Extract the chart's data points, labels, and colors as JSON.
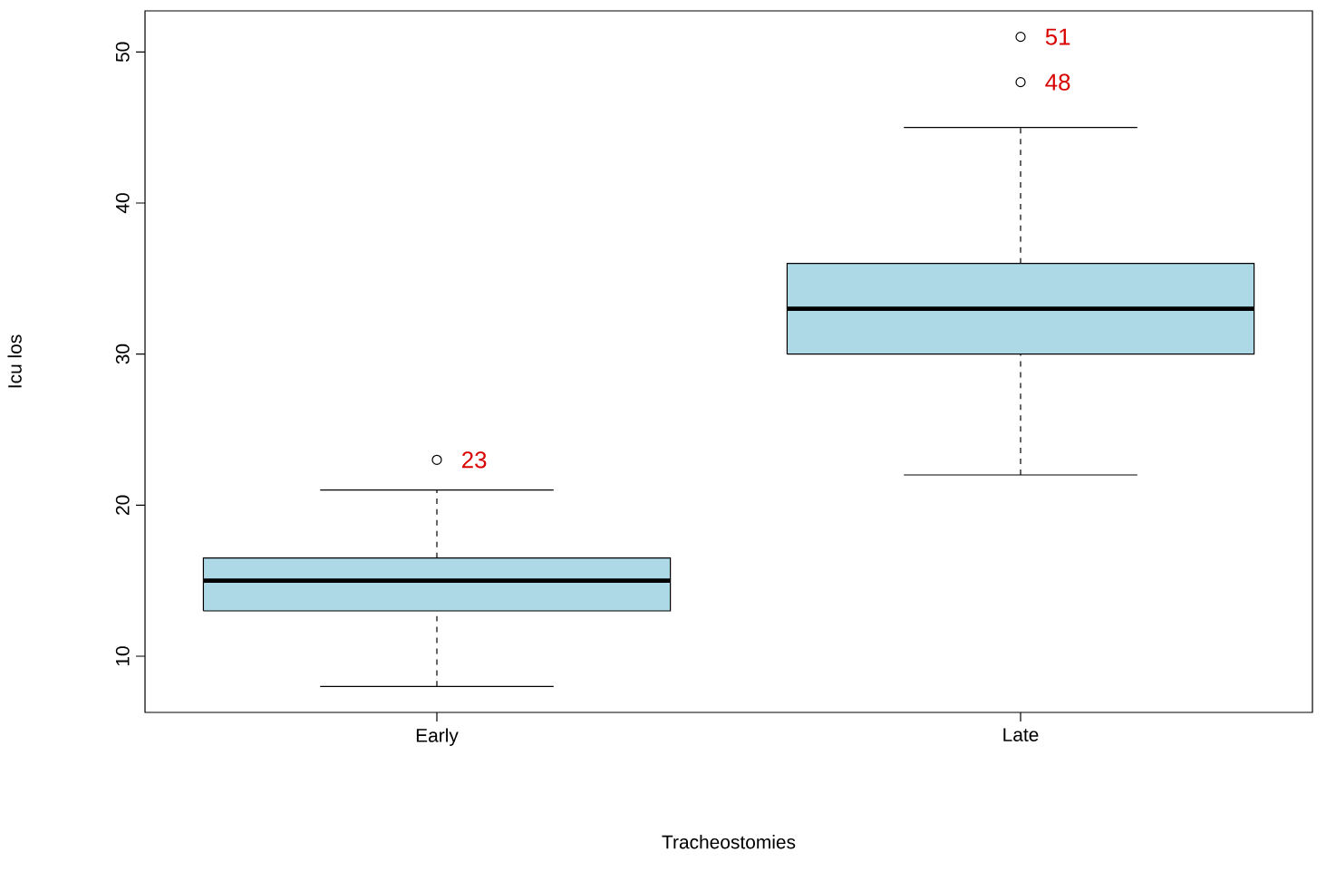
{
  "chart_data": {
    "type": "box",
    "xlabel": "Tracheostomies",
    "ylabel": "Icu los",
    "categories": [
      "Early",
      "Late"
    ],
    "series": [
      {
        "color": "#add8e6",
        "boxes": [
          {
            "low": 8,
            "q1": 13,
            "median": 15,
            "q3": 16.5,
            "high": 21,
            "outliers": [
              23
            ]
          },
          {
            "low": 22,
            "q1": 30,
            "median": 33,
            "q3": 36,
            "high": 45,
            "outliers": [
              48,
              51
            ]
          }
        ]
      }
    ],
    "ylim": [
      6.28,
      52.72
    ],
    "yticks": [
      10,
      20,
      30,
      40,
      50
    ],
    "annotations": [
      "23",
      "48",
      "51"
    ]
  }
}
